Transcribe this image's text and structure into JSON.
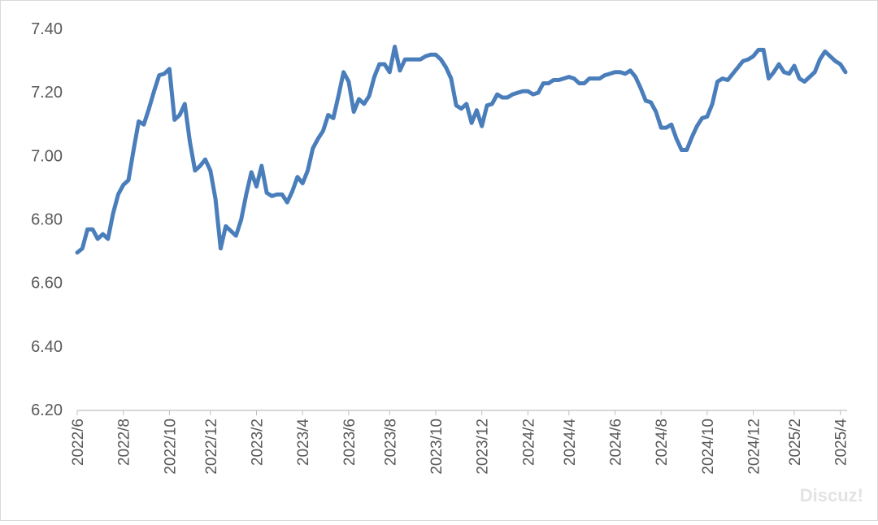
{
  "chart_data": {
    "type": "line",
    "watermark": "Discuz!",
    "categories": [
      "2022/6",
      null,
      null,
      null,
      null,
      null,
      null,
      null,
      null,
      "2022/8",
      null,
      null,
      null,
      null,
      null,
      null,
      null,
      null,
      "2022/10",
      null,
      null,
      null,
      null,
      null,
      null,
      null,
      "2022/12",
      null,
      null,
      null,
      null,
      null,
      null,
      null,
      null,
      "2023/2",
      null,
      null,
      null,
      null,
      null,
      null,
      null,
      null,
      "2023/4",
      null,
      null,
      null,
      null,
      null,
      null,
      null,
      null,
      "2023/6",
      null,
      null,
      null,
      null,
      null,
      null,
      null,
      "2023/8",
      null,
      null,
      null,
      null,
      null,
      null,
      null,
      null,
      "2023/10",
      null,
      null,
      null,
      null,
      null,
      null,
      null,
      null,
      "2023/12",
      null,
      null,
      null,
      null,
      null,
      null,
      null,
      null,
      "2024/2",
      null,
      null,
      null,
      null,
      null,
      null,
      null,
      "2024/4",
      null,
      null,
      null,
      null,
      null,
      null,
      null,
      null,
      "2024/6",
      null,
      null,
      null,
      null,
      null,
      null,
      null,
      null,
      "2024/8",
      null,
      null,
      null,
      null,
      null,
      null,
      null,
      null,
      "2024/10",
      null,
      null,
      null,
      null,
      null,
      null,
      null,
      null,
      "2024/12",
      null,
      null,
      null,
      null,
      null,
      null,
      null,
      "2025/2",
      null,
      null,
      null,
      null,
      null,
      null,
      null,
      null,
      "2025/4",
      null
    ],
    "series": [
      {
        "color": "#4a7ebb",
        "values": [
          6.697,
          6.71,
          6.77,
          6.77,
          6.74,
          6.755,
          6.74,
          6.82,
          6.88,
          6.91,
          6.925,
          7.02,
          7.11,
          7.1,
          7.15,
          7.205,
          7.255,
          7.26,
          7.275,
          7.115,
          7.13,
          7.165,
          7.045,
          6.955,
          6.97,
          6.99,
          6.955,
          6.865,
          6.71,
          6.78,
          6.765,
          6.75,
          6.8,
          6.88,
          6.95,
          6.905,
          6.97,
          6.885,
          6.875,
          6.88,
          6.88,
          6.855,
          6.89,
          6.935,
          6.915,
          6.955,
          7.025,
          7.055,
          7.08,
          7.13,
          7.12,
          7.19,
          7.265,
          7.235,
          7.14,
          7.18,
          7.165,
          7.19,
          7.25,
          7.29,
          7.29,
          7.265,
          7.345,
          7.27,
          7.305,
          7.305,
          7.305,
          7.305,
          7.315,
          7.32,
          7.32,
          7.305,
          7.28,
          7.245,
          7.16,
          7.15,
          7.165,
          7.105,
          7.145,
          7.095,
          7.16,
          7.165,
          7.195,
          7.185,
          7.185,
          7.195,
          7.2,
          7.205,
          7.205,
          7.195,
          7.2,
          7.23,
          7.23,
          7.24,
          7.24,
          7.245,
          7.25,
          7.245,
          7.23,
          7.23,
          7.245,
          7.245,
          7.245,
          7.255,
          7.26,
          7.265,
          7.265,
          7.26,
          7.27,
          7.25,
          7.215,
          7.175,
          7.17,
          7.14,
          7.09,
          7.09,
          7.1,
          7.055,
          7.02,
          7.02,
          7.06,
          7.095,
          7.12,
          7.125,
          7.165,
          7.235,
          7.245,
          7.24,
          7.26,
          7.28,
          7.3,
          7.305,
          7.315,
          7.335,
          7.335,
          7.245,
          7.265,
          7.29,
          7.265,
          7.26,
          7.285,
          7.245,
          7.235,
          7.25,
          7.265,
          7.305,
          7.33,
          7.315,
          7.3,
          7.29,
          7.265
        ]
      }
    ],
    "ylim": [
      6.2,
      7.4
    ],
    "yticks": [
      {
        "value": 6.2,
        "label": "6.20"
      },
      {
        "value": 6.4,
        "label": "6.40"
      },
      {
        "value": 6.6,
        "label": "6.60"
      },
      {
        "value": 6.8,
        "label": "6.80"
      },
      {
        "value": 7.0,
        "label": "7.00"
      },
      {
        "value": 7.2,
        "label": "7.20"
      },
      {
        "value": 7.4,
        "label": "7.40"
      }
    ],
    "grid": false
  }
}
